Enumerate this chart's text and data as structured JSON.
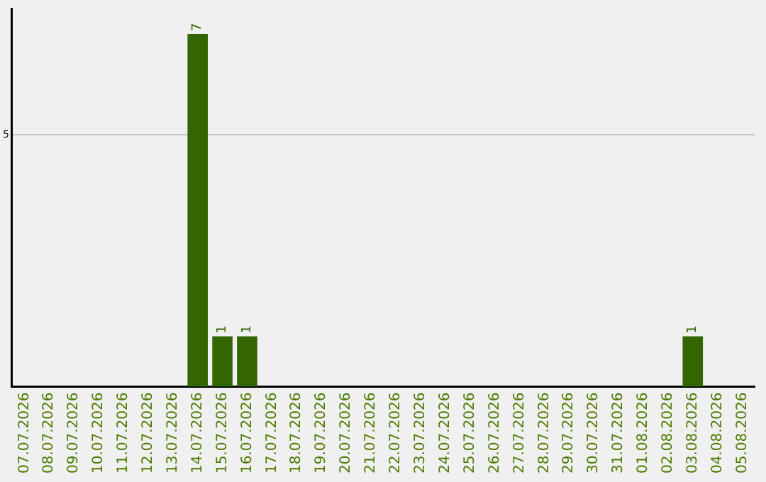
{
  "chart_data": {
    "type": "bar",
    "categories": [
      "07.07.2026",
      "08.07.2026",
      "09.07.2026",
      "10.07.2026",
      "11.07.2026",
      "12.07.2026",
      "13.07.2026",
      "14.07.2026",
      "15.07.2026",
      "16.07.2026",
      "17.07.2026",
      "18.07.2026",
      "19.07.2026",
      "20.07.2026",
      "21.07.2026",
      "22.07.2026",
      "23.07.2026",
      "24.07.2026",
      "25.07.2026",
      "26.07.2026",
      "27.07.2026",
      "28.07.2026",
      "29.07.2026",
      "30.07.2026",
      "31.07.2026",
      "01.08.2026",
      "02.08.2026",
      "03.08.2026",
      "04.08.2026",
      "05.08.2026"
    ],
    "values": [
      0,
      0,
      0,
      0,
      0,
      0,
      0,
      7,
      1,
      1,
      0,
      0,
      0,
      0,
      0,
      0,
      0,
      0,
      0,
      0,
      0,
      0,
      0,
      0,
      0,
      0,
      0,
      1,
      0,
      0
    ],
    "value_labels": [
      null,
      null,
      null,
      null,
      null,
      null,
      null,
      "7",
      "1",
      "1",
      null,
      null,
      null,
      null,
      null,
      null,
      null,
      null,
      null,
      null,
      null,
      null,
      null,
      null,
      null,
      null,
      null,
      "1",
      null,
      null
    ],
    "color": "#336600",
    "ylim": [
      0,
      7.5
    ],
    "yticks": [
      5
    ],
    "grid": "y",
    "legend": false
  }
}
